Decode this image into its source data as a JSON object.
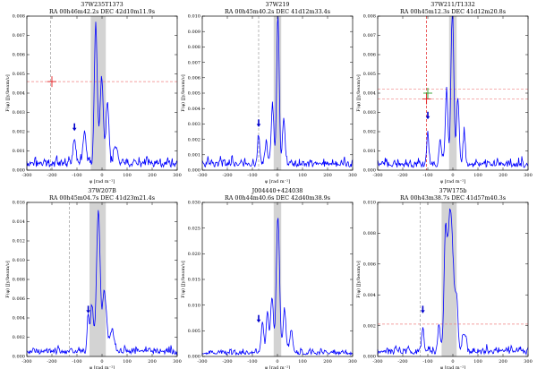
{
  "figure": {
    "xlabel": "φ [rad m⁻²]",
    "ylabel": "F(φ) [Jy/beam/ν]",
    "x_ticks": [
      -300,
      -200,
      -100,
      0,
      100,
      200,
      300
    ]
  },
  "chart_data": [
    {
      "type": "line",
      "title": "37W235T1373",
      "subtitle": "RA 00h46m42.2s  DEC 42d10m11.9s",
      "xlim": [
        -300,
        300
      ],
      "ylim": [
        0,
        0.008
      ],
      "y_ticks": [
        0.0,
        0.001,
        0.002,
        0.003,
        0.004,
        0.005,
        0.006,
        0.007,
        0.008
      ],
      "y_tick_labels": [
        "0.000",
        "0.001",
        "0.002",
        "0.003",
        "0.004",
        "0.005",
        "0.006",
        "0.007",
        "0.008"
      ],
      "shaded_range": [
        -45,
        15
      ],
      "vline": -205,
      "vline_color": "#9a9a9a",
      "hlines": [
        0.0046
      ],
      "cross": {
        "x": -200,
        "y": 0.0046,
        "color": "#e31a1c"
      },
      "arrow_x": -110,
      "arrow_y": 0.0022,
      "curve_seed": 11,
      "peaks": [
        {
          "x": -25,
          "a": 0.0073,
          "w": 8
        },
        {
          "x": -2,
          "a": 0.0042,
          "w": 10
        },
        {
          "x": 22,
          "a": 0.0032,
          "w": 8
        },
        {
          "x": -70,
          "a": 0.0017,
          "w": 9
        },
        {
          "x": -110,
          "a": 0.0013,
          "w": 8
        },
        {
          "x": 55,
          "a": 0.001,
          "w": 10
        }
      ],
      "noise": 0.00055,
      "base": 0.0004
    },
    {
      "type": "line",
      "title": "37W219",
      "subtitle": "RA 00h45m40.2s  DEC 41d12m33.4s",
      "xlim": [
        -300,
        300
      ],
      "ylim": [
        0,
        0.01
      ],
      "y_ticks": [
        0.0,
        0.001,
        0.002,
        0.003,
        0.004,
        0.005,
        0.006,
        0.007,
        0.008,
        0.009,
        0.01
      ],
      "y_tick_labels": [
        "0.000",
        "0.001",
        "0.002",
        "0.003",
        "0.004",
        "0.005",
        "0.006",
        "0.007",
        "0.008",
        "0.009",
        "0.010"
      ],
      "shaded_range": [
        -15,
        15
      ],
      "vline": -75,
      "vline_color": "#9a9a9a",
      "hlines": [],
      "cross": null,
      "arrow_x": -75,
      "arrow_y": 0.003,
      "curve_seed": 23,
      "peaks": [
        {
          "x": 2,
          "a": 0.0096,
          "w": 7
        },
        {
          "x": -20,
          "a": 0.004,
          "w": 7
        },
        {
          "x": 25,
          "a": 0.003,
          "w": 7
        },
        {
          "x": -75,
          "a": 0.0018,
          "w": 7
        },
        {
          "x": -45,
          "a": 0.0012,
          "w": 8
        }
      ],
      "noise": 0.0006,
      "base": 0.0005
    },
    {
      "type": "line",
      "title": "37W211/T1332",
      "subtitle": "RA 00h45m12.3s  DEC 41d12m20.8s",
      "xlim": [
        -300,
        300
      ],
      "ylim": [
        0,
        0.008
      ],
      "y_ticks": [
        0.0,
        0.001,
        0.002,
        0.003,
        0.004,
        0.005,
        0.006,
        0.007,
        0.008
      ],
      "y_tick_labels": [
        "0.000",
        "0.001",
        "0.002",
        "0.003",
        "0.004",
        "0.005",
        "0.006",
        "0.007",
        "0.008"
      ],
      "shaded_range": [
        -15,
        15
      ],
      "vline": -105,
      "vline_color": "#e31a1c",
      "hlines": [
        0.0042,
        0.0037
      ],
      "cross": {
        "x": -105,
        "y": 0.0037,
        "color": "#e31a1c"
      },
      "cross2": {
        "x": -100,
        "y": 0.004,
        "color": "#2ca02c"
      },
      "arrow_x": -100,
      "arrow_y": 0.0028,
      "curve_seed": 37,
      "peaks": [
        {
          "x": -2,
          "a": 0.008,
          "w": 8
        },
        {
          "x": -25,
          "a": 0.004,
          "w": 7
        },
        {
          "x": 20,
          "a": 0.0036,
          "w": 7
        },
        {
          "x": -100,
          "a": 0.0016,
          "w": 6
        },
        {
          "x": 45,
          "a": 0.0015,
          "w": 7
        },
        {
          "x": -50,
          "a": 0.0012,
          "w": 7
        }
      ],
      "noise": 0.0005,
      "base": 0.00035
    },
    {
      "type": "line",
      "title": "37W207B",
      "subtitle": "RA 00h45m04.7s  DEC 41d23m21.4s",
      "xlim": [
        -300,
        300
      ],
      "ylim": [
        0,
        0.016
      ],
      "y_ticks": [
        0.0,
        0.002,
        0.004,
        0.006,
        0.008,
        0.01,
        0.012,
        0.014,
        0.016
      ],
      "y_tick_labels": [
        "0.000",
        "0.002",
        "0.004",
        "0.006",
        "0.008",
        "0.010",
        "0.012",
        "0.014",
        "0.016"
      ],
      "shaded_range": [
        -50,
        15
      ],
      "vline": -130,
      "vline_color": "#9a9a9a",
      "hlines": [],
      "cross": null,
      "arrow_x": -55,
      "arrow_y": 0.0048,
      "curve_seed": 41,
      "peaks": [
        {
          "x": -15,
          "a": 0.0145,
          "w": 10
        },
        {
          "x": 10,
          "a": 0.006,
          "w": 12
        },
        {
          "x": -40,
          "a": 0.0045,
          "w": 8
        },
        {
          "x": -55,
          "a": 0.0038,
          "w": 6
        },
        {
          "x": 40,
          "a": 0.0022,
          "w": 12
        }
      ],
      "noise": 0.0008,
      "base": 0.0006
    },
    {
      "type": "line",
      "title": "J004440+424038",
      "subtitle": "RA 00h44m40.6s  DEC 42d40m38.9s",
      "xlim": [
        -300,
        300
      ],
      "ylim": [
        0,
        0.03
      ],
      "y_ticks": [
        0.0,
        0.005,
        0.01,
        0.015,
        0.02,
        0.025,
        0.03
      ],
      "y_tick_labels": [
        "0.000",
        "0.005",
        "0.010",
        "0.015",
        "0.020",
        "0.025",
        "0.030"
      ],
      "shaded_range": [
        -15,
        15
      ],
      "vline": null,
      "vline_color": "#9a9a9a",
      "hlines": [],
      "cross": null,
      "arrow_x": -75,
      "arrow_y": 0.0072,
      "curve_seed": 53,
      "peaks": [
        {
          "x": 2,
          "a": 0.0265,
          "w": 9
        },
        {
          "x": -22,
          "a": 0.011,
          "w": 8
        },
        {
          "x": -40,
          "a": 0.008,
          "w": 7
        },
        {
          "x": -60,
          "a": 0.006,
          "w": 7
        },
        {
          "x": 28,
          "a": 0.0085,
          "w": 8
        },
        {
          "x": 55,
          "a": 0.0045,
          "w": 8
        }
      ],
      "noise": 0.0012,
      "base": 0.0008
    },
    {
      "type": "line",
      "title": "37W175b",
      "subtitle": "RA 00h43m38.7s  DEC 41d57m40.3s",
      "xlim": [
        -300,
        300
      ],
      "ylim": [
        0,
        0.01
      ],
      "y_ticks": [
        0.0,
        0.002,
        0.004,
        0.006,
        0.008,
        0.01
      ],
      "y_tick_labels": [
        "0.000",
        "0.002",
        "0.004",
        "0.006",
        "0.008",
        "0.010"
      ],
      "shaded_range": [
        -45,
        15
      ],
      "vline": -130,
      "vline_color": "#9a9a9a",
      "hlines": [
        0.0021
      ],
      "cross": null,
      "arrow_x": -120,
      "arrow_y": 0.003,
      "curve_seed": 67,
      "peaks": [
        {
          "x": -10,
          "a": 0.0092,
          "w": 16
        },
        {
          "x": -30,
          "a": 0.006,
          "w": 8
        },
        {
          "x": 15,
          "a": 0.003,
          "w": 8
        },
        {
          "x": -120,
          "a": 0.0016,
          "w": 6
        },
        {
          "x": -55,
          "a": 0.0018,
          "w": 7
        },
        {
          "x": 45,
          "a": 0.0012,
          "w": 10
        }
      ],
      "noise": 0.0005,
      "base": 0.0004
    }
  ]
}
